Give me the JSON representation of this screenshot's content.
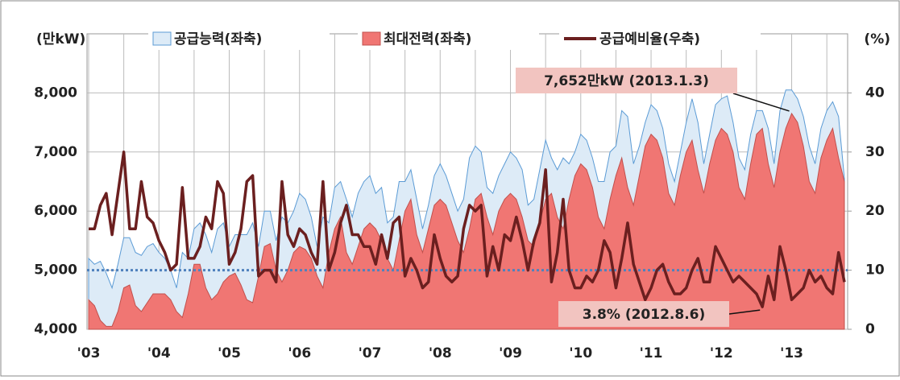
{
  "chart_data": {
    "type": "area-line",
    "y_label": "(만kW)",
    "y2_label": "(%)",
    "categories": [
      "'03",
      null,
      null,
      null,
      null,
      null,
      null,
      null,
      null,
      null,
      null,
      null,
      "'04",
      null,
      null,
      null,
      null,
      null,
      null,
      null,
      null,
      null,
      null,
      null,
      "'05",
      null,
      null,
      null,
      null,
      null,
      null,
      null,
      null,
      null,
      null,
      null,
      "'06",
      null,
      null,
      null,
      null,
      null,
      null,
      null,
      null,
      null,
      null,
      null,
      "'07",
      null,
      null,
      null,
      null,
      null,
      null,
      null,
      null,
      null,
      null,
      null,
      "'08",
      null,
      null,
      null,
      null,
      null,
      null,
      null,
      null,
      null,
      null,
      null,
      "'09",
      null,
      null,
      null,
      null,
      null,
      null,
      null,
      null,
      null,
      null,
      null,
      "'10",
      null,
      null,
      null,
      null,
      null,
      null,
      null,
      null,
      null,
      null,
      null,
      "'11",
      null,
      null,
      null,
      null,
      null,
      null,
      null,
      null,
      null,
      null,
      null,
      "'12",
      null,
      null,
      null,
      null,
      null,
      null,
      null,
      null,
      null,
      null,
      null,
      "'13",
      null,
      null,
      null,
      null,
      null,
      null,
      null,
      null,
      null
    ],
    "series": [
      {
        "name": "공급능력(좌축)",
        "kind": "area",
        "color": "#ddebf7",
        "stroke": "#5b9bd5",
        "values": [
          5200,
          5100,
          5150,
          4950,
          4700,
          5100,
          5550,
          5550,
          5300,
          5250,
          5400,
          5450,
          5300,
          5200,
          5000,
          4700,
          5300,
          5200,
          5700,
          5800,
          5600,
          5300,
          5700,
          5800,
          5400,
          5600,
          5600,
          5600,
          5800,
          5400,
          6000,
          6000,
          5500,
          5900,
          5800,
          6000,
          6300,
          6200,
          5900,
          5400,
          5900,
          5800,
          6400,
          6500,
          6200,
          5900,
          6300,
          6500,
          6600,
          6300,
          6400,
          5800,
          5900,
          6500,
          6500,
          6700,
          6200,
          5700,
          6100,
          6600,
          6800,
          6600,
          6300,
          6000,
          6200,
          6900,
          7100,
          7000,
          6400,
          6300,
          6600,
          6800,
          7000,
          6900,
          6700,
          6100,
          6200,
          6700,
          7200,
          6900,
          6700,
          6900,
          6800,
          7000,
          7300,
          7200,
          6900,
          6500,
          6500,
          7000,
          7100,
          7700,
          7600,
          6800,
          7100,
          7500,
          7800,
          7700,
          7400,
          6800,
          6500,
          7000,
          7500,
          7900,
          7500,
          6800,
          7300,
          7800,
          7900,
          7950,
          7500,
          6900,
          6700,
          7300,
          7700,
          7700,
          7400,
          6800,
          7700,
          8050,
          8050,
          7900,
          7600,
          7100,
          6800,
          7400,
          7700,
          7850,
          7600,
          6550
        ]
      },
      {
        "name": "최대전력(좌축)",
        "kind": "area",
        "color": "#f07673",
        "stroke": "#c0504d",
        "values": [
          4500,
          4400,
          4150,
          4050,
          4050,
          4300,
          4700,
          4750,
          4400,
          4300,
          4450,
          4600,
          4600,
          4600,
          4500,
          4300,
          4200,
          4600,
          5100,
          5100,
          4700,
          4500,
          4600,
          4800,
          4900,
          4950,
          4750,
          4500,
          4450,
          4900,
          5400,
          5450,
          5000,
          4800,
          5000,
          5300,
          5400,
          5350,
          5200,
          4900,
          4700,
          5300,
          5700,
          5900,
          5300,
          5100,
          5400,
          5700,
          5800,
          5700,
          5500,
          5200,
          5000,
          5500,
          6000,
          6200,
          5600,
          5300,
          5700,
          6100,
          6200,
          6100,
          5800,
          5500,
          5300,
          5700,
          6200,
          6300,
          5900,
          5600,
          6000,
          6200,
          6300,
          6200,
          5900,
          5500,
          5400,
          5800,
          6200,
          6300,
          5900,
          5700,
          6200,
          6600,
          6800,
          6700,
          6400,
          5900,
          5700,
          6200,
          6600,
          6900,
          6400,
          6100,
          6600,
          7100,
          7300,
          7200,
          6900,
          6300,
          6100,
          6600,
          7000,
          7200,
          6700,
          6300,
          6800,
          7200,
          7400,
          7300,
          7000,
          6400,
          6200,
          6800,
          7300,
          7400,
          6800,
          6400,
          7000,
          7400,
          7652,
          7500,
          7100,
          6500,
          6300,
          6900,
          7200,
          7400,
          6900,
          6500
        ]
      },
      {
        "name": "공급예비율(우축)",
        "kind": "line",
        "axis": "y2",
        "color": "#6b1f1f",
        "values": [
          17,
          17,
          21,
          23,
          16,
          23,
          30,
          17,
          17,
          25,
          19,
          18,
          15,
          13,
          10,
          11,
          24,
          12,
          12,
          14,
          19,
          17,
          25,
          23,
          11,
          13,
          17,
          25,
          26,
          9,
          10,
          10,
          8,
          25,
          16,
          14,
          17,
          16,
          13,
          11,
          25,
          10,
          13,
          18,
          21,
          16,
          16,
          14,
          14,
          11,
          16,
          12,
          18,
          19,
          9,
          12,
          10,
          7,
          8,
          16,
          12,
          9,
          8,
          9,
          17,
          21,
          20,
          21,
          9,
          14,
          10,
          16,
          15,
          19,
          15,
          10,
          15,
          18,
          27,
          8,
          13,
          22,
          10,
          7,
          7,
          9,
          8,
          10,
          15,
          13,
          7,
          12,
          18,
          11,
          8,
          5,
          7,
          10,
          11,
          8,
          6,
          6,
          7,
          10,
          12,
          8,
          8,
          14,
          12,
          10,
          8,
          9,
          8,
          7,
          6,
          3.8,
          9,
          5,
          14,
          10,
          5,
          6,
          7,
          10,
          8,
          9,
          7,
          6,
          13,
          8
        ]
      }
    ],
    "ylim": [
      4000,
      9000
    ],
    "yticks": [
      {
        "value": 4000,
        "label": "4,000"
      },
      {
        "value": 5000,
        "label": "5,000"
      },
      {
        "value": 6000,
        "label": "6,000"
      },
      {
        "value": 7000,
        "label": "7,000"
      },
      {
        "value": 8000,
        "label": "8,000"
      }
    ],
    "y2lim": [
      0,
      50
    ],
    "y2ticks": [
      0,
      10,
      20,
      30,
      40
    ],
    "reference_line": {
      "value": 5000,
      "color": "#4f81bd"
    },
    "grid": true,
    "annotations": [
      {
        "text": "7,652만kW (2013.1.3)",
        "series": 1,
        "index": 120
      },
      {
        "text": "3.8% (2012.8.6)",
        "series": 2,
        "index": 115
      }
    ]
  }
}
